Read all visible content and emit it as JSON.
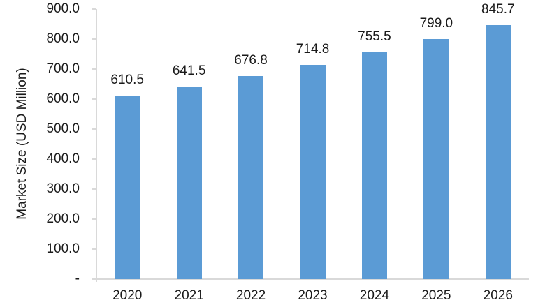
{
  "chart_data": {
    "type": "bar",
    "title": "",
    "categories": [
      "2020",
      "2021",
      "2022",
      "2023",
      "2024",
      "2025",
      "2026"
    ],
    "values": [
      610.5,
      641.5,
      676.8,
      714.8,
      755.5,
      799.0,
      845.7
    ],
    "value_labels": [
      "610.5",
      "641.5",
      "676.8",
      "714.8",
      "755.5",
      "799.0",
      "845.7"
    ],
    "xlabel": "",
    "ylabel": "Market Size (USD Million)",
    "ylim": [
      0,
      900
    ],
    "ytick_step": 100,
    "ytick_labels": [
      "-",
      "100.0",
      "200.0",
      "300.0",
      "400.0",
      "500.0",
      "600.0",
      "700.0",
      "800.0",
      "900.0"
    ],
    "grid": false,
    "legend": "none",
    "colors": {
      "bar": "#5B9BD5",
      "axis": "#D9D9D9",
      "text": "#1A1A1A",
      "background": "#FFFFFF"
    }
  }
}
